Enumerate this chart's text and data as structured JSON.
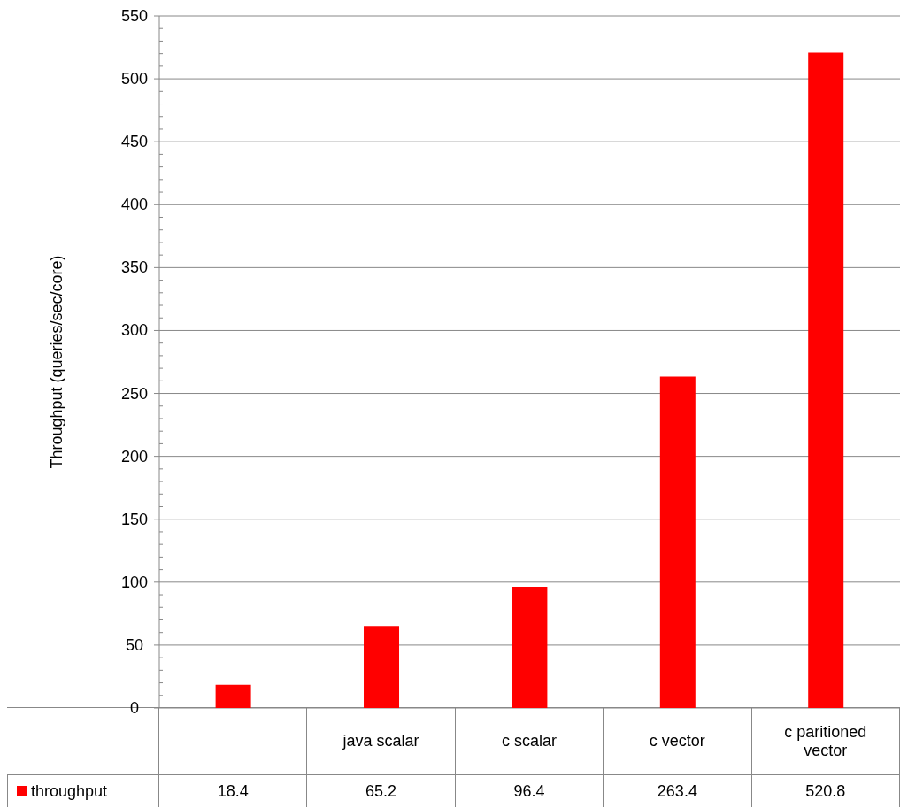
{
  "chart_data": {
    "type": "bar",
    "ylabel": "Throughput (queries/sec/core)",
    "categories": [
      null,
      "java scalar",
      "c scalar",
      "c vector",
      "c paritioned vector"
    ],
    "series": [
      {
        "name": "throughput",
        "color": "#ff0000",
        "values": [
          18.4,
          65.2,
          96.4,
          263.4,
          520.8
        ]
      }
    ],
    "ylim": [
      0,
      550
    ],
    "yticks": [
      0,
      {
        "value": 10,
        "label": null
      },
      {
        "value": 20,
        "label": null
      },
      {
        "value": 30,
        "label": null
      },
      {
        "value": 40,
        "label": null
      },
      50,
      {
        "value": 60,
        "label": null
      },
      {
        "value": 70,
        "label": null
      },
      {
        "value": 80,
        "label": null
      },
      {
        "value": 90,
        "label": null
      },
      100,
      {
        "value": 110,
        "label": null
      },
      {
        "value": 120,
        "label": null
      },
      {
        "value": 130,
        "label": null
      },
      {
        "value": 140,
        "label": null
      },
      150,
      {
        "value": 160,
        "label": null
      },
      {
        "value": 170,
        "label": null
      },
      {
        "value": 180,
        "label": null
      },
      {
        "value": 190,
        "label": null
      },
      200,
      {
        "value": 210,
        "label": null
      },
      {
        "value": 220,
        "label": null
      },
      {
        "value": 230,
        "label": null
      },
      {
        "value": 240,
        "label": null
      },
      250,
      {
        "value": 260,
        "label": null
      },
      {
        "value": 270,
        "label": null
      },
      {
        "value": 280,
        "label": null
      },
      {
        "value": 290,
        "label": null
      },
      300,
      {
        "value": 310,
        "label": null
      },
      {
        "value": 320,
        "label": null
      },
      {
        "value": 330,
        "label": null
      },
      {
        "value": 340,
        "label": null
      },
      350,
      {
        "value": 360,
        "label": null
      },
      {
        "value": 370,
        "label": null
      },
      {
        "value": 380,
        "label": null
      },
      {
        "value": 390,
        "label": null
      },
      400,
      {
        "value": 410,
        "label": null
      },
      {
        "value": 420,
        "label": null
      },
      {
        "value": 430,
        "label": null
      },
      {
        "value": 440,
        "label": null
      },
      450,
      {
        "value": 460,
        "label": null
      },
      {
        "value": 470,
        "label": null
      },
      {
        "value": 480,
        "label": null
      },
      {
        "value": 490,
        "label": null
      },
      500,
      {
        "value": 510,
        "label": null
      },
      {
        "value": 520,
        "label": null
      },
      {
        "value": 530,
        "label": null
      },
      {
        "value": 540,
        "label": null
      },
      550
    ],
    "grid": "y",
    "legend": "bottom",
    "data_labels": true
  }
}
